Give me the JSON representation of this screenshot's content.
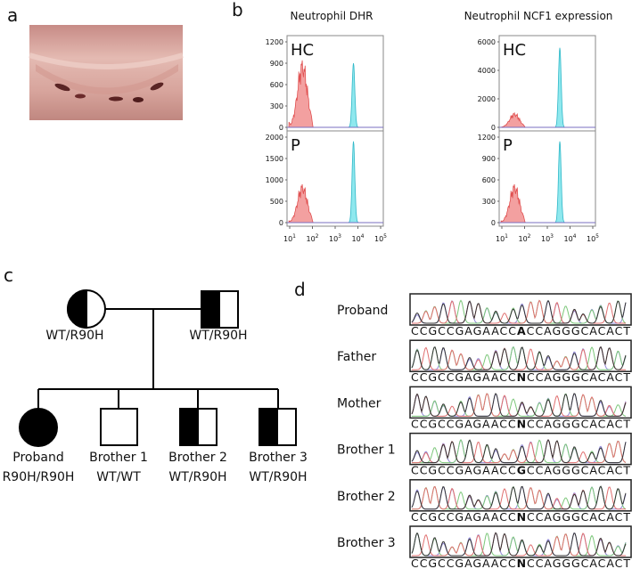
{
  "panels": [
    "a",
    "b",
    "c",
    "d"
  ],
  "flow": {
    "titles": [
      "Neutrophil DHR",
      "Neutrophil NCF1 expression"
    ],
    "xbase": "10",
    "xexp": [
      "1",
      "2",
      "3",
      "4",
      "5"
    ],
    "plots": [
      {
        "label": "HC",
        "yticks": [
          "1200",
          "900",
          "600",
          "300",
          "0"
        ]
      },
      {
        "label": "P",
        "yticks": [
          "2000",
          "1500",
          "1000",
          "500",
          "0"
        ]
      },
      {
        "label": "HC",
        "yticks": [
          "6000",
          "4000",
          "2000",
          "0"
        ]
      },
      {
        "label": "P",
        "yticks": [
          "1200",
          "900",
          "600",
          "300",
          "0"
        ]
      }
    ]
  },
  "pedigree": {
    "parents": [
      "WT/R90H",
      "WT/R90H"
    ],
    "children": [
      {
        "name": "Proband",
        "genotype": "R90H/R90H"
      },
      {
        "name": "Brother 1",
        "genotype": "WT/WT"
      },
      {
        "name": "Brother 2",
        "genotype": "WT/R90H"
      },
      {
        "name": "Brother 3",
        "genotype": "WT/R90H"
      }
    ]
  },
  "sequencing": [
    {
      "name": "Proband",
      "prefix": "CCGCCGAGAACC",
      "variant": "A",
      "suffix": "CCAGGGCACACT"
    },
    {
      "name": "Father",
      "prefix": "CCGCCGAGAACC",
      "variant": "N",
      "suffix": "CCAGGGCACACT"
    },
    {
      "name": "Mother",
      "prefix": "CCGCCGAGAACC",
      "variant": "N",
      "suffix": "CCAGGGCACACT"
    },
    {
      "name": "Brother 1",
      "prefix": "CCGCCGAGAACC",
      "variant": "G",
      "suffix": "CCAGGGCACACT"
    },
    {
      "name": "Brother 2",
      "prefix": "CCGCCGAGAACC",
      "variant": "N",
      "suffix": "CCAGGGCACACT"
    },
    {
      "name": "Brother 3",
      "prefix": "CCGCCGAGAACC",
      "variant": "N",
      "suffix": "CCAGGGCACACT"
    }
  ]
}
